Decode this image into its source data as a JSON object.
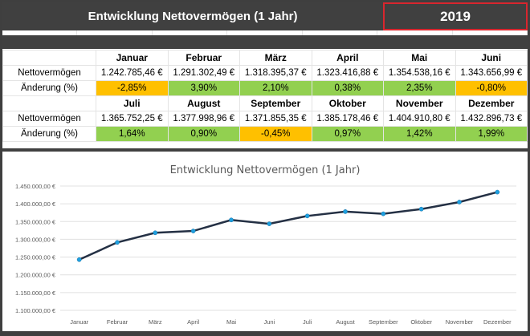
{
  "header": {
    "title": "Entwicklung Nettovermögen (1 Jahr)",
    "year": "2019"
  },
  "table": {
    "row_label_value": "Nettovermögen",
    "row_label_change": "Änderung (%)",
    "blocks": [
      {
        "months": [
          "Januar",
          "Februar",
          "März",
          "April",
          "Mai",
          "Juni"
        ],
        "values": [
          "1.242.785,46 €",
          "1.291.302,49 €",
          "1.318.395,37 €",
          "1.323.416,88 €",
          "1.354.538,16 €",
          "1.343.656,99 €"
        ],
        "changes": [
          "-2,85%",
          "3,90%",
          "2,10%",
          "0,38%",
          "2,35%",
          "-0,80%"
        ]
      },
      {
        "months": [
          "Juli",
          "August",
          "September",
          "Oktober",
          "November",
          "Dezember"
        ],
        "values": [
          "1.365.752,25 €",
          "1.377.998,96 €",
          "1.371.855,35 €",
          "1.385.178,46 €",
          "1.404.910,80 €",
          "1.432.896,73 €"
        ],
        "changes": [
          "1,64%",
          "0,90%",
          "-0,45%",
          "0,97%",
          "1,42%",
          "1,99%"
        ]
      }
    ]
  },
  "colors": {
    "positive": "#92d050",
    "negative": "#ffc000",
    "line": "#243044",
    "marker": "#1ea0e0",
    "header": "#404040"
  },
  "chart_data": {
    "type": "line",
    "title": "Entwicklung Nettovermögen (1 Jahr)",
    "categories": [
      "Januar",
      "Februar",
      "März",
      "April",
      "Mai",
      "Juni",
      "Juli",
      "August",
      "September",
      "Oktober",
      "November",
      "Dezember"
    ],
    "values": [
      1242785.46,
      1291302.49,
      1318395.37,
      1323416.88,
      1354538.16,
      1343656.99,
      1365752.25,
      1377998.96,
      1371855.35,
      1385178.46,
      1404910.8,
      1432896.73
    ],
    "ylim": [
      1100000,
      1450000
    ],
    "yticks": [
      "1.100.000,00 €",
      "1.150.000,00 €",
      "1.200.000,00 €",
      "1.250.000,00 €",
      "1.300.000,00 €",
      "1.350.000,00 €",
      "1.400.000,00 €",
      "1.450.000,00 €"
    ],
    "grid": true,
    "legend": "none"
  }
}
